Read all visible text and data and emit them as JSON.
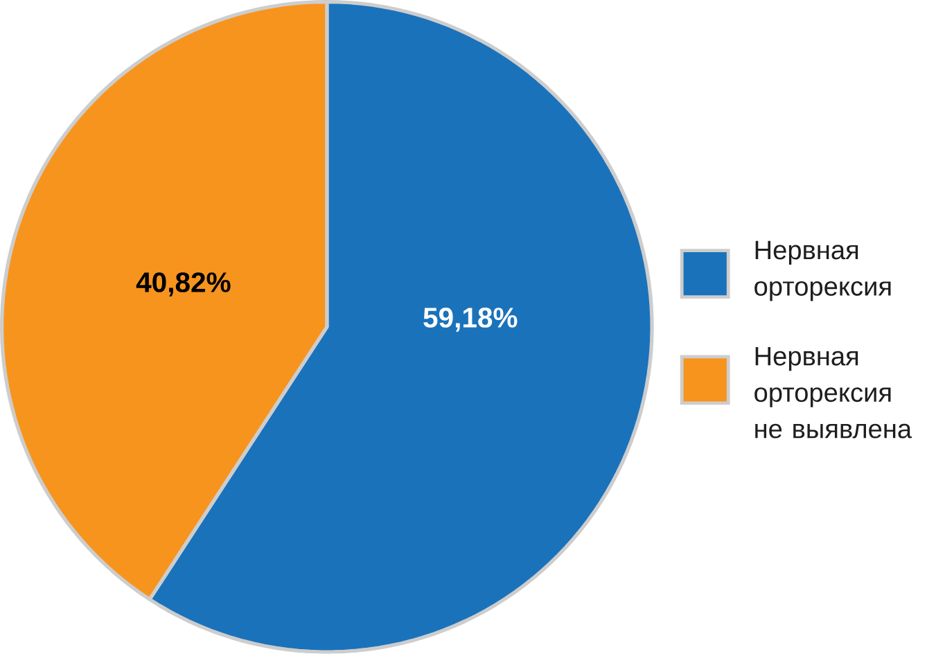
{
  "chart_data": {
    "type": "pie",
    "categories": [
      "Нервная орторексия",
      "Нервная орторексия не выявлена"
    ],
    "values": [
      59.18,
      40.82
    ],
    "colors": [
      "#1a72bb",
      "#f7941d"
    ],
    "value_labels": [
      "59,18%",
      "40,82%"
    ],
    "legend": "right"
  }
}
